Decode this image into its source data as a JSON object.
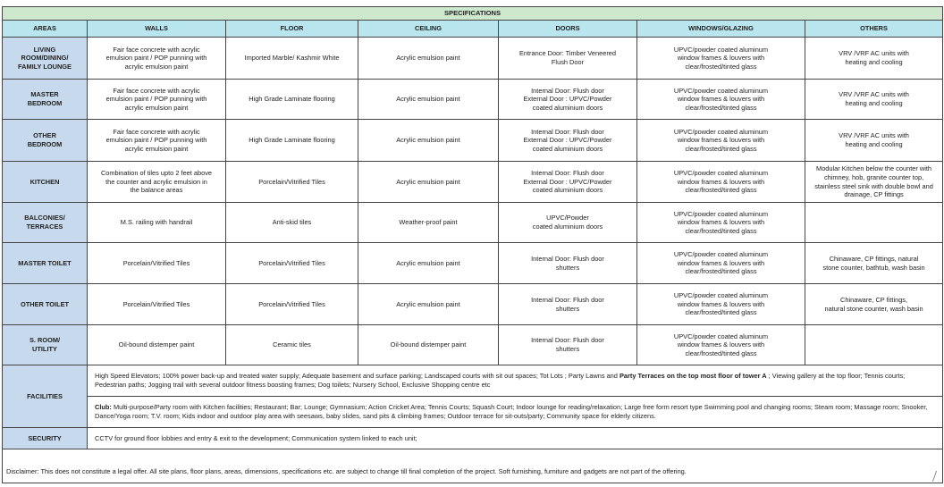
{
  "title": "SPECIFICATIONS",
  "columns": [
    "AREAS",
    "WALLS",
    "FLOOR",
    "CEILING",
    "DOORS",
    "WINDOWS/GLAZING",
    "OTHERS"
  ],
  "rows": [
    {
      "area": "LIVING\nROOM/DINING/\nFAMILY LOUNGE",
      "walls": "Fair face concrete with acrylic\nemulsion paint / POP punning with\nacrylic emulsion paint",
      "floor": "Imported Marble/ Kashmir White",
      "ceiling": "Acrylic emulsion paint",
      "doors": "Entrance Door: Timber Veneered\nFlush Door",
      "windows": "UPVC/powder coated aluminum\nwindow frames & louvers with\nclear/frosted/tinted glass",
      "others": "VRV /VRF AC units with\nheating and cooling"
    },
    {
      "area": "MASTER\nBEDROOM",
      "walls": "Fair face concrete with acrylic\nemulsion paint / POP punning with\nacrylic emulsion paint",
      "floor": "High Grade Laminate flooring",
      "ceiling": "Acrylic emulsion paint",
      "doors": "Internal Door: Flush door\nExternal Door : UPVC/Powder\ncoated aluminium doors",
      "windows": "UPVC/powder coated aluminum\nwindow frames & louvers with\nclear/frosted/tinted glass",
      "others": "VRV /VRF AC units with\nheating and cooling"
    },
    {
      "area": "OTHER\nBEDROOM",
      "walls": "Fair face concrete with acrylic\nemulsion paint / POP punning with\nacrylic emulsion paint",
      "floor": "High Grade Laminate flooring",
      "ceiling": "Acrylic emulsion paint",
      "doors": "Internal Door: Flush door\nExternal Door : UPVC/Powder\ncoated aluminium doors",
      "windows": "UPVC/powder coated aluminum\nwindow frames & louvers with\nclear/frosted/tinted glass",
      "others": "VRV /VRF AC units with\nheating and cooling"
    },
    {
      "area": "KITCHEN",
      "walls": "Combination of tiles upto 2 feet above\nthe counter and acrylic emulsion in\nthe balance areas",
      "floor": "Porcelain/Vitrified Tiles",
      "ceiling": "Acrylic emulsion paint",
      "doors": "Internal Door: Flush door\nExternal Door : UPVC/Powder\ncoated aluminium doors",
      "windows": "UPVC/powder coated aluminum\nwindow frames & louvers with\nclear/frosted/tinted glass",
      "others": "Modular Kitchen below the counter with\nchimney, hob, granite counter top,\nstainless steel sink with double bowl and\ndrainage, CP fittings"
    },
    {
      "area": "BALCONIES/\nTERRACES",
      "walls": "M.S. railing with handrail",
      "floor": "Anti-skid tiles",
      "ceiling": "Weather-proof paint",
      "doors": "UPVC/Powder\ncoated aluminium doors",
      "windows": "UPVC/powder coated aluminum\nwindow frames & louvers with\nclear/frosted/tinted glass",
      "others": ""
    },
    {
      "area": "MASTER TOILET",
      "walls": "Porcelain/Vitrified Tiles",
      "floor": "Porcelain/Vitrified Tiles",
      "ceiling": "Acrylic emulsion paint",
      "doors": "Internal Door: Flush door\nshutters",
      "windows": "UPVC/powder coated aluminum\nwindow frames & louvers with\nclear/frosted/tinted glass",
      "others": "Chinaware, CP fittings, natural\nstone counter, bathtub, wash basin"
    },
    {
      "area": "OTHER TOILET",
      "walls": "Porcelain/Vitrified Tiles",
      "floor": "Porcelain/Vitrified Tiles",
      "ceiling": "Acrylic emulsion paint",
      "doors": "Internal Door: Flush door\nshutters",
      "windows": "UPVC/powder coated aluminum\nwindow frames & louvers with\nclear/frosted/tinted glass",
      "others": "Chinaware, CP fittings,\nnatural stone counter, wash basin"
    },
    {
      "area": "S. ROOM/\nUTILITY",
      "walls": "Oil-bound distemper paint",
      "floor": "Ceramic tiles",
      "ceiling": "Oil-bound distemper paint",
      "doors": "Internal Door: Flush door\nshutters",
      "windows": "UPVC/powder coated aluminum\nwindow frames & louvers with\nclear/frosted/tinted glass",
      "others": ""
    }
  ],
  "facilities": {
    "label": "FACILITIES",
    "general_before": "High Speed Elevators; 100% power back-up and treated water supply; Adequate basement and surface parking; Landscaped courts with sit out spaces; Tot Lots ; Party Lawns and ",
    "general_bold": "Party Terraces on the top most floor of tower A",
    "general_after": " ; Viewing gallery at the top floor; Tennis courts; Pedestrian paths; Jogging trail with several outdoor fitness boosting frames; Dog toilets;  Nursery School, Exclusive Shopping centre etc",
    "club_label": "Club:",
    "club_text": " Multi-purpose/Party room with Kitchen facilities; Restaurant; Bar; Lounge; Gymnasium; Action Cricket Area;  Tennis Courts; Squash Court; Indoor lounge for reading/relaxation; Large free form resort type Swimming pool and changing rooms; Steam room; Massage room; Snooker, Dance/Yoga room; T.V. room; Kids indoor and outdoor play area with seesaws, baby slides, sand pits & climbing frames; Outdoor terrace for sit-outs/party; Community space for elderly citizens."
  },
  "security": {
    "label": "SECURITY",
    "text": "CCTV for ground floor lobbies and entry & exit to the development;  Communication system linked to each unit;"
  },
  "disclaimer": "Disclaimer: This does not constitute a legal offer.  All site plans, floor plans, areas, dimensions, specifications etc. are subject to change till final completion of the project. Soft furnishing, furniture and gadgets are not part of the offering.",
  "colors": {
    "title_bg": "#cde8cd",
    "header_bg": "#b9e5ee",
    "area_bg": "#c7d9ec",
    "border": "#444444"
  }
}
